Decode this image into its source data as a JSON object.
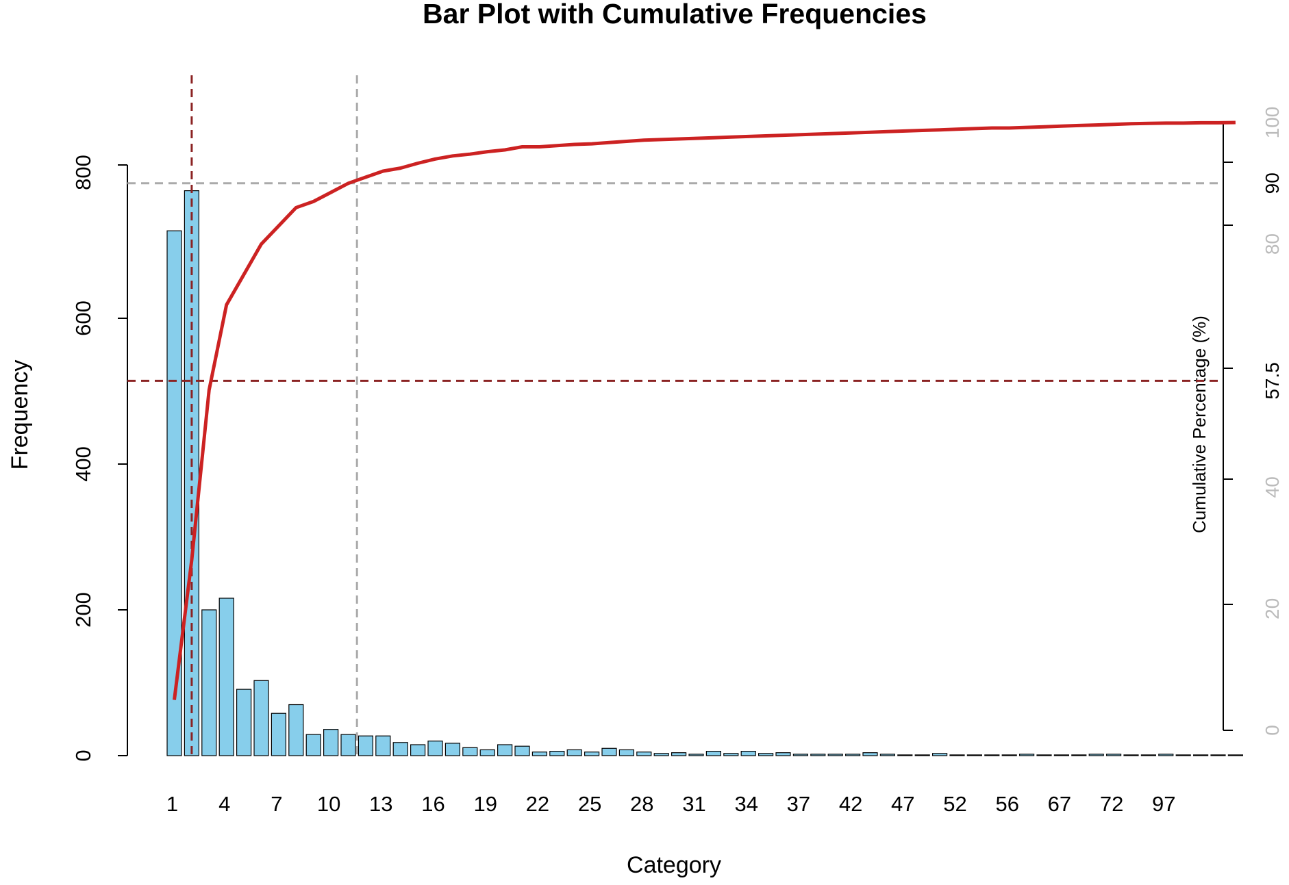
{
  "chart_data": {
    "type": "bar",
    "title": "Bar Plot with Cumulative Frequencies",
    "xlabel": "Category",
    "ylabel": "Frequency",
    "y2label": "Cumulative Percentage (%)",
    "ylim": [
      0,
      800
    ],
    "y2lim": [
      0,
      100
    ],
    "yticks": [
      "0",
      "200",
      "400",
      "600",
      "800"
    ],
    "y2ticks": [
      {
        "value": 0,
        "label": "0",
        "highlight": false
      },
      {
        "value": 20,
        "label": "20",
        "highlight": false
      },
      {
        "value": 40,
        "label": "40",
        "highlight": false
      },
      {
        "value": 57.5,
        "label": "57.5",
        "highlight": true
      },
      {
        "value": 80,
        "label": "80",
        "highlight": false
      },
      {
        "value": 90,
        "label": "90",
        "highlight": true
      },
      {
        "value": 100,
        "label": "100",
        "highlight": false
      }
    ],
    "xtick_labels": [
      "1",
      "4",
      "7",
      "10",
      "13",
      "16",
      "19",
      "22",
      "25",
      "28",
      "31",
      "34",
      "37",
      "42",
      "47",
      "52",
      "56",
      "67",
      "72",
      "97"
    ],
    "bar_values": [
      720,
      775,
      200,
      216,
      91,
      103,
      58,
      70,
      29,
      36,
      29,
      27,
      27,
      18,
      15,
      20,
      17,
      11,
      8,
      15,
      13,
      5,
      6,
      8,
      5,
      10,
      8,
      5,
      3,
      4,
      2,
      6,
      3,
      6,
      3,
      4,
      2,
      2,
      2,
      2,
      4,
      2,
      1,
      1,
      3,
      1,
      1,
      1,
      1,
      2,
      1,
      1,
      1,
      2,
      2,
      1,
      1,
      2,
      1,
      1,
      1,
      1
    ],
    "cumulative_series": {
      "name": "",
      "values": [
        5,
        28,
        56,
        70,
        75,
        80,
        83,
        86,
        87,
        88.5,
        90,
        91,
        92,
        92.5,
        93.3,
        94,
        94.5,
        94.8,
        95.2,
        95.5,
        96,
        96,
        96.2,
        96.4,
        96.5,
        96.7,
        96.9,
        97.1,
        97.2,
        97.3,
        97.4,
        97.5,
        97.6,
        97.7,
        97.8,
        97.9,
        98,
        98.1,
        98.2,
        98.3,
        98.4,
        98.5,
        98.6,
        98.7,
        98.8,
        98.9,
        99,
        99.1,
        99.1,
        99.2,
        99.3,
        99.4,
        99.5,
        99.6,
        99.7,
        99.8,
        99.85,
        99.9,
        99.9,
        99.95,
        99.95,
        100
      ]
    },
    "reference_lines": [
      {
        "orientation": "vertical",
        "category_position": 2,
        "color": "#8b2323"
      },
      {
        "orientation": "horizontal",
        "cumulative": 57.5,
        "color": "#8b2323"
      },
      {
        "orientation": "vertical",
        "category_position": 11.5,
        "color": "#aaaaaa"
      },
      {
        "orientation": "horizontal",
        "cumulative": 90,
        "color": "#aaaaaa"
      }
    ],
    "colors": {
      "bar_fill": "#87ceeb",
      "bar_stroke": "#000000",
      "cumulative_line": "#cc2222",
      "primary_reference": "#8b2323",
      "secondary_reference": "#aaaaaa",
      "muted_tick": "#bbbbbb",
      "highlight_tick": "#000000"
    },
    "grid": false,
    "legend": "none"
  }
}
